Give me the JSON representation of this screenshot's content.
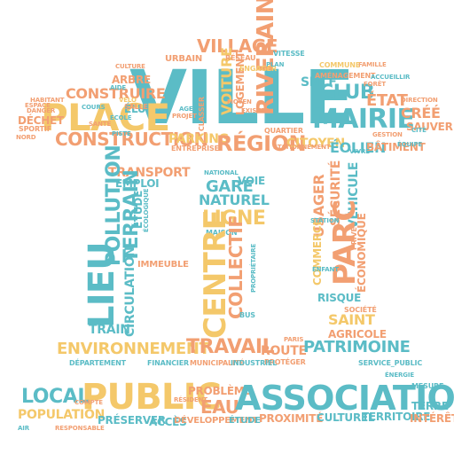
{
  "colors": {
    "yellow": "#f4c86a",
    "orange": "#f29f72",
    "teal": "#5bbcc6",
    "background": "#ffffff"
  },
  "words": [
    {
      "text": "VILLE",
      "color": "teal"
    },
    {
      "text": "VILLAGE",
      "color": "orange"
    },
    {
      "text": "PLACE",
      "color": "yellow"
    },
    {
      "text": "CONSTRUIRE",
      "color": "orange"
    },
    {
      "text": "CONSTRUCTION",
      "color": "orange"
    },
    {
      "text": "PARKING",
      "color": "yellow"
    },
    {
      "text": "RÉGION",
      "color": "orange"
    },
    {
      "text": "MAIRIE",
      "color": "teal"
    },
    {
      "text": "CLUB",
      "color": "teal"
    },
    {
      "text": "ÉTAT",
      "color": "orange"
    },
    {
      "text": "CRÉÉ",
      "color": "orange"
    },
    {
      "text": "SAUVER",
      "color": "orange"
    },
    {
      "text": "CITOYEN",
      "color": "yellow"
    },
    {
      "text": "ÉOLIEN",
      "color": "teal"
    },
    {
      "text": "BÂTIMENT",
      "color": "orange"
    },
    {
      "text": "RIVERAIN",
      "color": "orange"
    },
    {
      "text": "SNCF",
      "color": "teal"
    },
    {
      "text": "AMÉNAGEMENT",
      "color": "orange"
    },
    {
      "text": "URBAIN",
      "color": "orange"
    },
    {
      "text": "VITESSE",
      "color": "teal"
    },
    {
      "text": "DÉCHET",
      "color": "orange"
    },
    {
      "text": "SPORTIF",
      "color": "orange"
    },
    {
      "text": "ÉLU",
      "color": "teal"
    },
    {
      "text": "ARBRE",
      "color": "orange"
    },
    {
      "text": "VOITURE",
      "color": "yellow"
    },
    {
      "text": "LOGEMENT",
      "color": "orange"
    },
    {
      "text": "TRANSPORT",
      "color": "orange"
    },
    {
      "text": "EMPLOI",
      "color": "teal"
    },
    {
      "text": "POLLUTION",
      "color": "teal"
    },
    {
      "text": "TERRAIN",
      "color": "teal"
    },
    {
      "text": "LIEU",
      "color": "teal"
    },
    {
      "text": "CIRCULATION",
      "color": "teal"
    },
    {
      "text": "TRAIN",
      "color": "teal"
    },
    {
      "text": "ÉTUDE",
      "color": "teal"
    },
    {
      "text": "IMMEUBLE",
      "color": "orange"
    },
    {
      "text": "GARE",
      "color": "teal"
    },
    {
      "text": "NATUREL",
      "color": "teal"
    },
    {
      "text": "LIGNE",
      "color": "yellow"
    },
    {
      "text": "MAISON",
      "color": "teal"
    },
    {
      "text": "CENTRE",
      "color": "yellow"
    },
    {
      "text": "COLLECTIF",
      "color": "orange"
    },
    {
      "text": "VOIE",
      "color": "teal"
    },
    {
      "text": "USAGER",
      "color": "orange"
    },
    {
      "text": "SÉCURITÉ",
      "color": "orange"
    },
    {
      "text": "VÉHICULE",
      "color": "teal"
    },
    {
      "text": "PARC",
      "color": "orange"
    },
    {
      "text": "COMMERCE",
      "color": "yellow"
    },
    {
      "text": "ÉCONOMIQUE",
      "color": "orange"
    },
    {
      "text": "RISQUE",
      "color": "teal"
    },
    {
      "text": "SAINT",
      "color": "yellow"
    },
    {
      "text": "AGRICOLE",
      "color": "orange"
    },
    {
      "text": "SOCIÉTÉ",
      "color": "orange"
    },
    {
      "text": "ENVIRONNEMENT",
      "color": "yellow"
    },
    {
      "text": "TRAVAIL",
      "color": "orange"
    },
    {
      "text": "ROUTE",
      "color": "orange"
    },
    {
      "text": "PATRIMOINE",
      "color": "teal"
    },
    {
      "text": "DÉPARTEMENT",
      "color": "teal"
    },
    {
      "text": "MUNICIPALITÉ",
      "color": "orange"
    },
    {
      "text": "PROTÉGER",
      "color": "orange"
    },
    {
      "text": "INDUSTRIEL",
      "color": "teal"
    },
    {
      "text": "PUBLIC",
      "color": "yellow"
    },
    {
      "text": "LOCAL",
      "color": "teal"
    },
    {
      "text": "POPULATION",
      "color": "yellow"
    },
    {
      "text": "PRÉSERVER",
      "color": "teal"
    },
    {
      "text": "PROBLÈME",
      "color": "orange"
    },
    {
      "text": "EAU",
      "color": "orange"
    },
    {
      "text": "ASSOCIATION",
      "color": "teal"
    },
    {
      "text": "ACCÈS",
      "color": "teal"
    },
    {
      "text": "DÉVELOPPEMENT",
      "color": "orange"
    },
    {
      "text": "ÉTUDE",
      "color": "teal"
    },
    {
      "text": "PROXIMITÉ",
      "color": "orange"
    },
    {
      "text": "CULTUREL",
      "color": "teal"
    },
    {
      "text": "TERRITOIRE",
      "color": "teal"
    },
    {
      "text": "INTÉRÊT",
      "color": "orange"
    },
    {
      "text": "TERRE",
      "color": "teal"
    },
    {
      "text": "MESURE",
      "color": "teal"
    },
    {
      "text": "NATIONAL",
      "color": "teal"
    },
    {
      "text": "ENTREPRISE",
      "color": "orange"
    },
    {
      "text": "SALLE",
      "color": "orange"
    },
    {
      "text": "ACCUEILLIR",
      "color": "teal"
    },
    {
      "text": "RÉSEAU",
      "color": "orange"
    },
    {
      "text": "QUARTIER",
      "color": "orange"
    },
    {
      "text": "PROPRIÉTAIRE",
      "color": "teal"
    },
    {
      "text": "BUS",
      "color": "teal"
    },
    {
      "text": "STATION",
      "color": "teal"
    },
    {
      "text": "PRIVÉ",
      "color": "orange"
    },
    {
      "text": "FINANCIER",
      "color": "teal"
    },
    {
      "text": "PARIS",
      "color": "orange"
    },
    {
      "text": "EXISTER",
      "color": "orange"
    },
    {
      "text": "SERVICE_PUBLIC",
      "color": "teal"
    },
    {
      "text": "RÉSIDENT",
      "color": "orange"
    },
    {
      "text": "FORÊT",
      "color": "orange"
    },
    {
      "text": "DANGER",
      "color": "orange"
    },
    {
      "text": "COURS",
      "color": "teal"
    },
    {
      "text": "ENFANT",
      "color": "teal"
    },
    {
      "text": "GESTION",
      "color": "orange"
    },
    {
      "text": "AIDE",
      "color": "teal"
    },
    {
      "text": "HABITANT",
      "color": "orange"
    },
    {
      "text": "AGENT",
      "color": "teal"
    },
    {
      "text": "SANTÉ",
      "color": "orange"
    },
    {
      "text": "ENGAGER",
      "color": "yellow"
    },
    {
      "text": "ÉCOLOGIQUE",
      "color": "teal"
    },
    {
      "text": "FAMILLE",
      "color": "orange"
    },
    {
      "text": "ÉCOLE",
      "color": "teal"
    },
    {
      "text": "DIRECTION",
      "color": "orange"
    },
    {
      "text": "CLASSER",
      "color": "orange"
    },
    {
      "text": "CULTURE",
      "color": "orange"
    },
    {
      "text": "VÉLO",
      "color": "yellow"
    },
    {
      "text": "PISTE",
      "color": "teal"
    },
    {
      "text": "PROJET",
      "color": "orange"
    },
    {
      "text": "COMMUNE",
      "color": "yellow"
    },
    {
      "text": "CITÉ",
      "color": "teal"
    },
    {
      "text": "ESPACE",
      "color": "orange"
    },
    {
      "text": "ÉQUIPE",
      "color": "teal"
    },
    {
      "text": "MOYEN",
      "color": "orange"
    },
    {
      "text": "PLAN",
      "color": "teal"
    },
    {
      "text": "NORD",
      "color": "orange"
    },
    {
      "text": "VIVRE",
      "color": "teal"
    },
    {
      "text": "STATIONNEMENT",
      "color": "orange"
    },
    {
      "text": "ÉNERGIE",
      "color": "teal"
    },
    {
      "text": "RESPONSABLE",
      "color": "orange"
    },
    {
      "text": "AIR",
      "color": "teal"
    },
    {
      "text": "COMPTE",
      "color": "orange"
    }
  ]
}
